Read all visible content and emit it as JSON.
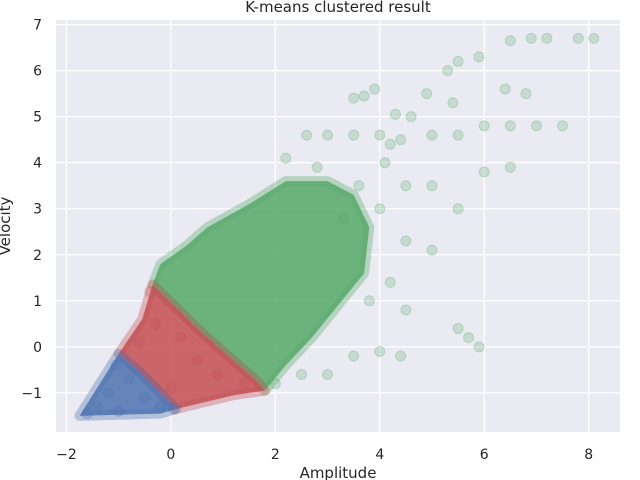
{
  "chart_data": {
    "type": "scatter",
    "title": "K-means clustered result",
    "xlabel": "Amplitude",
    "ylabel": "Velocity",
    "xlim": [
      -2.2,
      8.6
    ],
    "ylim": [
      -1.85,
      7.1
    ],
    "xticks": [
      -2,
      0,
      2,
      4,
      6,
      8
    ],
    "yticks": [
      -1,
      0,
      1,
      2,
      3,
      4,
      5,
      6,
      7
    ],
    "xtick_labels": [
      "−2",
      "0",
      "2",
      "4",
      "6",
      "8"
    ],
    "ytick_labels": [
      "−1",
      "0",
      "1",
      "2",
      "3",
      "4",
      "5",
      "6",
      "7"
    ],
    "grid": true,
    "legend": "none",
    "colors": {
      "plot_background": "#eaeaf2",
      "grid": "#ffffff",
      "cluster_blue": "#4c72b0",
      "cluster_red": "#c44e52",
      "cluster_green": "#55a868"
    },
    "marker_alpha": 0.15,
    "series": [
      {
        "color": "#4c72b0",
        "region": [
          [
            -1.75,
            -1.5
          ],
          [
            -1.0,
            -0.15
          ],
          [
            -0.55,
            -0.6
          ],
          [
            0.1,
            -1.35
          ],
          [
            -0.2,
            -1.45
          ],
          [
            -1.75,
            -1.5
          ]
        ],
        "points": [
          [
            -1.6,
            -1.45
          ],
          [
            -1.4,
            -1.3
          ],
          [
            -1.2,
            -1.0
          ],
          [
            -1.05,
            -0.4
          ],
          [
            -0.8,
            -0.7
          ],
          [
            -0.5,
            -1.1
          ],
          [
            -0.2,
            -1.3
          ],
          [
            0.05,
            -1.35
          ],
          [
            -1.0,
            -1.4
          ]
        ]
      },
      {
        "color": "#c44e52",
        "region": [
          [
            -1.0,
            -0.15
          ],
          [
            -0.55,
            0.6
          ],
          [
            -0.35,
            1.35
          ],
          [
            0.6,
            0.3
          ],
          [
            1.65,
            -0.75
          ],
          [
            1.8,
            -0.95
          ],
          [
            1.2,
            -1.05
          ],
          [
            0.1,
            -1.35
          ],
          [
            -0.55,
            -0.6
          ],
          [
            -1.0,
            -0.15
          ]
        ],
        "points": [
          [
            -0.4,
            1.2
          ],
          [
            -0.3,
            0.5
          ],
          [
            0.2,
            0.2
          ],
          [
            0.5,
            -0.3
          ],
          [
            0.9,
            -0.6
          ],
          [
            1.4,
            -0.8
          ],
          [
            0.0,
            -0.9
          ],
          [
            -0.6,
            0.1
          ]
        ]
      },
      {
        "color": "#55a868",
        "region": [
          [
            -0.35,
            1.35
          ],
          [
            -0.2,
            1.8
          ],
          [
            0.3,
            2.2
          ],
          [
            0.7,
            2.6
          ],
          [
            1.5,
            3.1
          ],
          [
            2.2,
            3.6
          ],
          [
            3.0,
            3.6
          ],
          [
            3.5,
            3.3
          ],
          [
            3.8,
            2.6
          ],
          [
            3.7,
            1.6
          ],
          [
            3.2,
            0.9
          ],
          [
            2.7,
            0.2
          ],
          [
            2.2,
            -0.4
          ],
          [
            1.8,
            -0.95
          ],
          [
            1.65,
            -0.75
          ],
          [
            0.6,
            0.3
          ],
          [
            -0.35,
            1.35
          ]
        ],
        "points": [
          [
            2.2,
            4.1
          ],
          [
            2.6,
            4.6
          ],
          [
            3.0,
            4.6
          ],
          [
            3.5,
            4.6
          ],
          [
            4.0,
            4.6
          ],
          [
            4.4,
            4.5
          ],
          [
            4.2,
            4.4
          ],
          [
            5.0,
            4.6
          ],
          [
            5.5,
            4.6
          ],
          [
            6.0,
            4.8
          ],
          [
            6.5,
            4.8
          ],
          [
            7.0,
            4.8
          ],
          [
            7.5,
            4.8
          ],
          [
            4.3,
            5.05
          ],
          [
            4.6,
            5.0
          ],
          [
            4.9,
            5.5
          ],
          [
            5.3,
            6.0
          ],
          [
            5.5,
            6.2
          ],
          [
            5.9,
            6.3
          ],
          [
            6.5,
            6.65
          ],
          [
            6.9,
            6.7
          ],
          [
            7.2,
            6.7
          ],
          [
            7.8,
            6.7
          ],
          [
            8.1,
            6.7
          ],
          [
            6.8,
            5.5
          ],
          [
            6.4,
            5.6
          ],
          [
            5.4,
            5.3
          ],
          [
            3.7,
            5.45
          ],
          [
            3.9,
            5.6
          ],
          [
            3.5,
            5.4
          ],
          [
            4.1,
            4.0
          ],
          [
            4.5,
            3.5
          ],
          [
            5.0,
            3.5
          ],
          [
            5.5,
            3.0
          ],
          [
            6.0,
            3.8
          ],
          [
            6.5,
            3.9
          ],
          [
            4.0,
            3.0
          ],
          [
            4.5,
            2.3
          ],
          [
            5.0,
            2.1
          ],
          [
            4.2,
            1.4
          ],
          [
            5.5,
            0.4
          ],
          [
            5.7,
            0.2
          ],
          [
            5.9,
            0.0
          ],
          [
            4.4,
            -0.2
          ],
          [
            4.0,
            -0.1
          ],
          [
            3.5,
            -0.2
          ],
          [
            3.0,
            -0.6
          ],
          [
            2.5,
            -0.6
          ],
          [
            2.0,
            -0.8
          ],
          [
            3.8,
            1.0
          ],
          [
            4.5,
            0.8
          ],
          [
            3.3,
            2.8
          ],
          [
            3.6,
            3.5
          ],
          [
            2.8,
            3.9
          ]
        ]
      }
    ]
  }
}
